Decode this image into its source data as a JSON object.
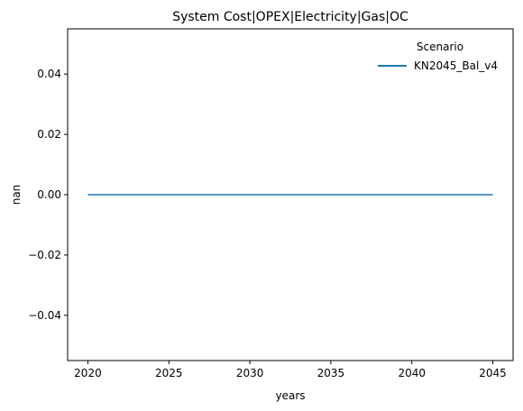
{
  "chart_data": {
    "type": "line",
    "title": "System Cost|OPEX|Electricity|Gas|OC",
    "xlabel": "years",
    "ylabel": "nan",
    "xlim": [
      2018.75,
      2046.25
    ],
    "ylim": [
      -0.055,
      0.055
    ],
    "x_ticks": [
      2020,
      2025,
      2030,
      2035,
      2040,
      2045
    ],
    "x_tick_labels": [
      "2020",
      "2025",
      "2030",
      "2035",
      "2040",
      "2045"
    ],
    "y_ticks": [
      -0.04,
      -0.02,
      0.0,
      0.02,
      0.04
    ],
    "y_tick_labels": [
      "−0.04",
      "−0.02",
      "0.00",
      "0.02",
      "0.04"
    ],
    "grid": false,
    "legend": {
      "title": "Scenario",
      "placement": "top-right"
    },
    "series": [
      {
        "name": "KN2045_Bal_v4",
        "color": "#1f77b4",
        "x": [
          2020,
          2025,
          2030,
          2035,
          2040,
          2045
        ],
        "y": [
          0,
          0,
          0,
          0,
          0,
          0
        ]
      }
    ]
  }
}
